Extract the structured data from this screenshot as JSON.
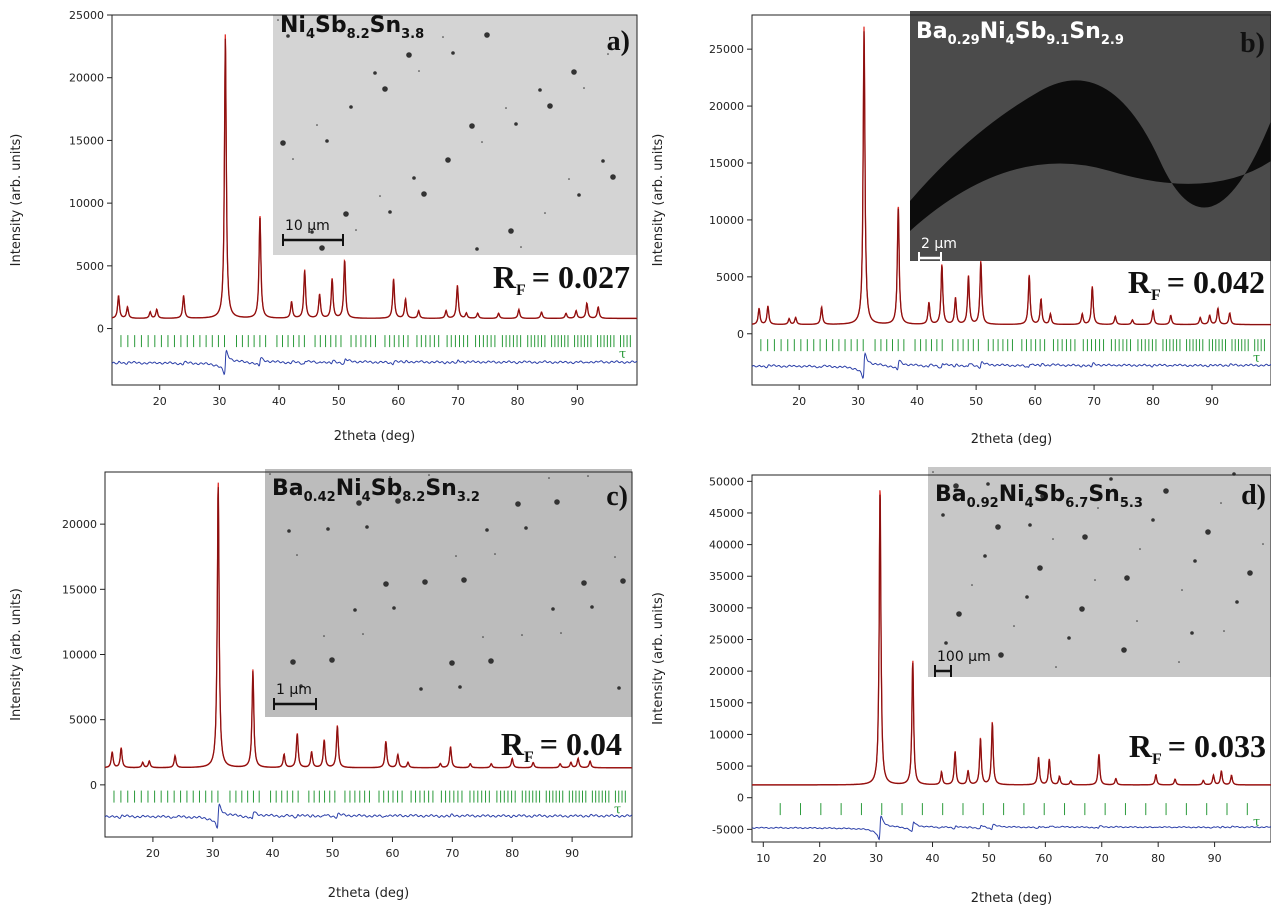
{
  "chart_data": [
    {
      "type": "line",
      "panel": "a)",
      "formula": {
        "base": [
          [
            "Ni",
            ""
          ],
          [
            "4",
            true
          ],
          [
            "Sb",
            ""
          ],
          [
            "8.2",
            true
          ],
          [
            "Sn",
            ""
          ],
          [
            "3.8",
            true
          ]
        ]
      },
      "rf_text": "R",
      "rf_sub": "F",
      "rf_value": "= 0.027",
      "scale_bar": "10 µm",
      "xlabel": "2theta (deg)",
      "ylabel": "Intensity (arb. units)",
      "xlim": [
        12,
        100
      ],
      "ylim": [
        -4500,
        25000
      ],
      "xticks": [
        20,
        30,
        40,
        50,
        60,
        70,
        80,
        90
      ],
      "yticks": [
        0,
        5000,
        10000,
        15000,
        20000,
        25000
      ],
      "ytick_labels": [
        "0",
        "5000",
        "10000",
        "15000",
        "20000",
        "25000"
      ],
      "background": 800,
      "tick_row": -1000,
      "diff_row": -2700,
      "reflection_marker": "τ",
      "peaks": [
        [
          13.1,
          1800
        ],
        [
          14.6,
          900
        ],
        [
          18.4,
          500
        ],
        [
          19.5,
          700
        ],
        [
          24.0,
          1800
        ],
        [
          31.0,
          22500
        ],
        [
          36.8,
          8200
        ],
        [
          42.1,
          1300
        ],
        [
          44.3,
          3800
        ],
        [
          46.8,
          1900
        ],
        [
          48.9,
          3100
        ],
        [
          51.0,
          4600
        ],
        [
          59.2,
          3100
        ],
        [
          61.2,
          1500
        ],
        [
          63.4,
          600
        ],
        [
          68.0,
          600
        ],
        [
          69.9,
          2600
        ],
        [
          71.4,
          400
        ],
        [
          73.3,
          400
        ],
        [
          76.8,
          400
        ],
        [
          80.2,
          700
        ],
        [
          84.0,
          500
        ],
        [
          88.1,
          400
        ],
        [
          89.8,
          600
        ],
        [
          91.6,
          1200
        ],
        [
          93.5,
          900
        ]
      ]
    },
    {
      "type": "line",
      "panel": "b)",
      "formula": {
        "base": [
          [
            "Ba",
            ""
          ],
          [
            "0.29",
            true
          ],
          [
            "Ni",
            ""
          ],
          [
            "4",
            true
          ],
          [
            "Sb",
            ""
          ],
          [
            "9.1",
            true
          ],
          [
            "Sn",
            ""
          ],
          [
            "2.9",
            true
          ]
        ]
      },
      "rf_text": "R",
      "rf_sub": "F",
      "rf_value": "= 0.042",
      "scale_bar": "2 µm",
      "xlabel": "2theta (deg)",
      "ylabel": "Intensity (arb. units)",
      "xlim": [
        12,
        100
      ],
      "ylim": [
        -4500,
        28000
      ],
      "xticks": [
        20,
        30,
        40,
        50,
        60,
        70,
        80,
        90
      ],
      "yticks": [
        0,
        5000,
        10000,
        15000,
        20000,
        25000
      ],
      "ytick_labels": [
        "0",
        "5000",
        "10000",
        "15000",
        "20000",
        "25000"
      ],
      "background": 800,
      "tick_row": -1000,
      "diff_row": -2800,
      "reflection_marker": "τ",
      "peaks": [
        [
          13.2,
          1400
        ],
        [
          14.7,
          1600
        ],
        [
          18.3,
          500
        ],
        [
          19.4,
          600
        ],
        [
          23.8,
          1500
        ],
        [
          31.0,
          26000
        ],
        [
          36.8,
          10400
        ],
        [
          42.0,
          1900
        ],
        [
          44.2,
          5200
        ],
        [
          46.5,
          2300
        ],
        [
          48.7,
          4200
        ],
        [
          50.8,
          5500
        ],
        [
          59.0,
          4300
        ],
        [
          61.0,
          2200
        ],
        [
          62.6,
          900
        ],
        [
          68.0,
          900
        ],
        [
          69.7,
          3300
        ],
        [
          73.6,
          700
        ],
        [
          76.5,
          400
        ],
        [
          80.0,
          1200
        ],
        [
          83.0,
          800
        ],
        [
          88.0,
          600
        ],
        [
          89.6,
          800
        ],
        [
          91.0,
          1400
        ],
        [
          93.0,
          1000
        ]
      ]
    },
    {
      "type": "line",
      "panel": "c)",
      "formula": {
        "base": [
          [
            "Ba",
            ""
          ],
          [
            "0.42",
            true
          ],
          [
            "Ni",
            ""
          ],
          [
            "4",
            true
          ],
          [
            "Sb",
            ""
          ],
          [
            "8.2",
            true
          ],
          [
            "Sn",
            ""
          ],
          [
            "3.2",
            true
          ]
        ]
      },
      "rf_text": "R",
      "rf_sub": "F",
      "rf_value": "= 0.04",
      "scale_bar": "1 µm",
      "xlabel": "2theta (deg)",
      "ylabel": "Intensity (arb. units)",
      "xlim": [
        12,
        100
      ],
      "ylim": [
        -4000,
        24000
      ],
      "xticks": [
        20,
        30,
        40,
        50,
        60,
        70,
        80,
        90
      ],
      "yticks": [
        0,
        5000,
        10000,
        15000,
        20000
      ],
      "ytick_labels": [
        "0",
        "5000",
        "10000",
        "15000",
        "20000"
      ],
      "background": 1300,
      "tick_row": -900,
      "diff_row": -2400,
      "reflection_marker": "τ",
      "peaks": [
        [
          13.2,
          1200
        ],
        [
          14.7,
          1500
        ],
        [
          18.3,
          400
        ],
        [
          19.4,
          500
        ],
        [
          23.7,
          900
        ],
        [
          30.9,
          21800
        ],
        [
          36.7,
          7400
        ],
        [
          41.9,
          1000
        ],
        [
          44.1,
          2600
        ],
        [
          46.5,
          1200
        ],
        [
          48.6,
          2100
        ],
        [
          50.8,
          3200
        ],
        [
          58.9,
          2000
        ],
        [
          60.9,
          1000
        ],
        [
          62.6,
          400
        ],
        [
          68.0,
          300
        ],
        [
          69.7,
          1600
        ],
        [
          73.0,
          300
        ],
        [
          76.5,
          300
        ],
        [
          80.0,
          700
        ],
        [
          83.5,
          400
        ],
        [
          88.0,
          300
        ],
        [
          89.8,
          400
        ],
        [
          91.0,
          700
        ],
        [
          93.0,
          500
        ]
      ]
    },
    {
      "type": "line",
      "panel": "d)",
      "formula": {
        "base": [
          [
            "Ba",
            ""
          ],
          [
            "0.92",
            true
          ],
          [
            "Ni",
            ""
          ],
          [
            "4",
            true
          ],
          [
            "Sb",
            ""
          ],
          [
            "6.7",
            true
          ],
          [
            "Sn",
            ""
          ],
          [
            "5.3",
            true
          ]
        ]
      },
      "rf_text": "R",
      "rf_sub": "F",
      "rf_value": "= 0.033",
      "scale_bar": "100 µm",
      "xlabel": "2theta (deg)",
      "ylabel": "Intensity (arb. units)",
      "xlim": [
        8,
        100
      ],
      "ylim": [
        -7000,
        51000
      ],
      "xticks": [
        10,
        20,
        30,
        40,
        50,
        60,
        70,
        80,
        90
      ],
      "yticks": [
        -5000,
        0,
        5000,
        10000,
        15000,
        20000,
        25000,
        30000,
        35000,
        40000,
        45000,
        50000
      ],
      "ytick_labels": [
        "-5000",
        "0",
        "5000",
        "10000",
        "15000",
        "20000",
        "25000",
        "30000",
        "35000",
        "40000",
        "45000",
        "50000"
      ],
      "background": 2000,
      "tick_row": -1800,
      "diff_row": -4700,
      "reflection_marker": "τ",
      "peaks": [
        [
          30.7,
          47000
        ],
        [
          36.5,
          19500
        ],
        [
          41.6,
          2000
        ],
        [
          44.0,
          5200
        ],
        [
          46.3,
          2200
        ],
        [
          48.5,
          7300
        ],
        [
          50.6,
          9800
        ],
        [
          58.8,
          4300
        ],
        [
          60.7,
          4000
        ],
        [
          62.5,
          1300
        ],
        [
          64.5,
          600
        ],
        [
          69.5,
          4800
        ],
        [
          72.5,
          1000
        ],
        [
          79.6,
          1600
        ],
        [
          83.0,
          900
        ],
        [
          88.0,
          700
        ],
        [
          89.8,
          1500
        ],
        [
          91.2,
          2200
        ],
        [
          93.0,
          1500
        ]
      ]
    }
  ]
}
